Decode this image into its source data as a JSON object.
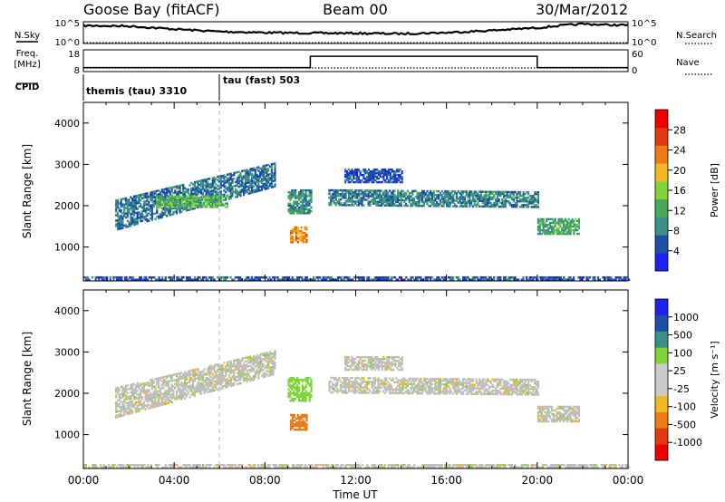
{
  "header": {
    "station": "Goose Bay (fitACF)",
    "beam": "Beam 00",
    "date": "30/Mar/2012"
  },
  "noise_panel": {
    "left_label": "N.Sky",
    "right_label": "N.Search",
    "left_ticks": [
      "10^5",
      "10^0"
    ],
    "right_ticks": [
      "10^5",
      "10^0"
    ]
  },
  "freq_panel": {
    "left_label_top": "Freq.",
    "left_label_unit": "[MHz]",
    "left_ticks": [
      "18",
      "8"
    ],
    "right_label": "Nave",
    "right_ticks": [
      "60",
      "0"
    ]
  },
  "cpid_panel": {
    "label": "CPID",
    "modes": [
      {
        "name": "themis (tau) 3310",
        "start_hour": 0
      },
      {
        "name": "tau (fast) 503",
        "start_hour": 6
      }
    ]
  },
  "colors": {
    "power_scale": [
      "#1f22ee",
      "#1d4fa6",
      "#3a8f86",
      "#49a95a",
      "#7fd43b",
      "#f1b820",
      "#ee7a14",
      "#e13a0f",
      "#ee0000"
    ],
    "velocity_scale": [
      "#ee0000",
      "#e13a0f",
      "#ee7a14",
      "#f1b820",
      "#cbcbcb",
      "#cbcbcb",
      "#7fd43b",
      "#3a8f86",
      "#1d4fa6",
      "#1f22ee"
    ],
    "ground_scatter": "#bfbfbf"
  },
  "power_colorbar": {
    "label": "Power [dB]",
    "ticks": [
      "4",
      "8",
      "12",
      "16",
      "20",
      "24",
      "28"
    ]
  },
  "velocity_colorbar": {
    "label": "Velocity [m s⁻¹]",
    "ticks": [
      "1000",
      "500",
      "100",
      "25",
      "-25",
      "-100",
      "-500",
      "-1000"
    ]
  },
  "chart_data": [
    {
      "type": "line",
      "panel": "noise",
      "series": [
        {
          "name": "N.Sky",
          "x_hours": [
            0,
            2,
            4,
            6,
            8,
            10,
            12,
            14,
            16,
            18,
            19,
            20,
            21,
            22,
            23,
            24
          ],
          "y_frac": [
            0.82,
            0.8,
            0.66,
            0.55,
            0.5,
            0.48,
            0.47,
            0.45,
            0.5,
            0.6,
            0.66,
            0.72,
            0.82,
            0.9,
            0.86,
            0.84
          ]
        },
        {
          "name": "N.Search",
          "x_hours": [
            0,
            24
          ],
          "y_frac": [
            0.0,
            0.0
          ]
        }
      ]
    },
    {
      "type": "line",
      "panel": "freq_nave",
      "series": [
        {
          "name": "Freq.",
          "x_hours": [
            0,
            24
          ],
          "y_mhz": [
            10,
            10
          ]
        },
        {
          "name": "Nave",
          "x_hours": [
            0,
            10,
            10,
            20,
            20,
            24
          ],
          "y_nave": [
            12,
            12,
            46,
            46,
            12,
            12
          ]
        }
      ]
    },
    {
      "type": "heatmap",
      "panel": "power",
      "title": "",
      "xlabel": "",
      "ylabel": "Slant Range [km]",
      "x_ticks": [
        "00:00",
        "04:00",
        "08:00",
        "12:00",
        "16:00",
        "20:00",
        "00:00"
      ],
      "y_ticks": [
        "1000",
        "2000",
        "3000",
        "4000"
      ],
      "xlim_hours": [
        0,
        24
      ],
      "ylim_km": [
        180,
        4500
      ],
      "zlim_db": [
        0,
        30
      ],
      "scatter_regions": [
        {
          "h0": 1.4,
          "h1": 8.4,
          "km0": 1400,
          "km1": 2150,
          "km_end0": 2450,
          "km_end1": 3050,
          "db": 6
        },
        {
          "h0": 3.2,
          "h1": 6.3,
          "km0": 1950,
          "km1": 2250,
          "km_end0": 1950,
          "km_end1": 2250,
          "db": 12
        },
        {
          "h0": 9.0,
          "h1": 10.0,
          "km0": 1800,
          "km1": 2400,
          "km_end0": 1800,
          "km_end1": 2400,
          "db": 8
        },
        {
          "h0": 9.1,
          "h1": 9.8,
          "km0": 1100,
          "km1": 1500,
          "km_end0": 1100,
          "km_end1": 1500,
          "db": 20
        },
        {
          "h0": 10.8,
          "h1": 20.0,
          "km0": 2000,
          "km1": 2400,
          "km_end0": 1950,
          "km_end1": 2350,
          "db": 7
        },
        {
          "h0": 11.5,
          "h1": 14.0,
          "km0": 2550,
          "km1": 2900,
          "km_end0": 2550,
          "km_end1": 2900,
          "db": 4
        },
        {
          "h0": 20.0,
          "h1": 21.8,
          "km0": 1300,
          "km1": 1700,
          "km_end0": 1300,
          "km_end1": 1700,
          "db": 10
        },
        {
          "h0": 0,
          "h1": 24,
          "km0": 190,
          "km1": 300,
          "km_end0": 190,
          "km_end1": 300,
          "db": 4
        }
      ]
    },
    {
      "type": "heatmap",
      "panel": "velocity",
      "title": "",
      "xlabel": "Time UT",
      "ylabel": "Slant Range [km]",
      "x_ticks": [
        "00:00",
        "04:00",
        "08:00",
        "12:00",
        "16:00",
        "20:00",
        "00:00"
      ],
      "y_ticks": [
        "1000",
        "2000",
        "3000",
        "4000"
      ],
      "xlim_hours": [
        0,
        24
      ],
      "ylim_km": [
        180,
        4500
      ],
      "zlim_ms": [
        -1000,
        1000
      ],
      "scatter_regions": [
        {
          "h0": 1.4,
          "h1": 8.4,
          "km0": 1400,
          "km1": 2150,
          "km_end0": 2450,
          "km_end1": 3050,
          "vel": 0
        },
        {
          "h0": 9.0,
          "h1": 10.0,
          "km0": 1800,
          "km1": 2400,
          "km_end0": 1800,
          "km_end1": 2400,
          "vel": 60
        },
        {
          "h0": 9.1,
          "h1": 9.8,
          "km0": 1100,
          "km1": 1500,
          "km_end0": 1100,
          "km_end1": 1500,
          "vel": -200
        },
        {
          "h0": 10.8,
          "h1": 20.0,
          "km0": 2000,
          "km1": 2400,
          "km_end0": 1950,
          "km_end1": 2350,
          "vel": 0
        },
        {
          "h0": 11.5,
          "h1": 14.0,
          "km0": 2550,
          "km1": 2900,
          "km_end0": 2550,
          "km_end1": 2900,
          "vel": 0
        },
        {
          "h0": 20.0,
          "h1": 21.8,
          "km0": 1300,
          "km1": 1700,
          "km_end0": 1300,
          "km_end1": 1700,
          "vel": 0
        },
        {
          "h0": 0,
          "h1": 24,
          "km0": 190,
          "km1": 300,
          "km_end0": 190,
          "km_end1": 300,
          "vel": 0
        }
      ]
    }
  ]
}
